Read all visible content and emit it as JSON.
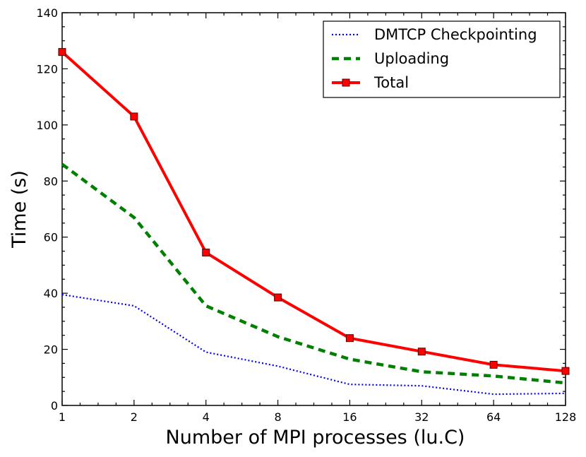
{
  "chart_data": {
    "type": "line",
    "xlabel": "Number of MPI processes (lu.C)",
    "ylabel": "Time (s)",
    "x": [
      1,
      2,
      4,
      8,
      16,
      32,
      64,
      128
    ],
    "x_tick_labels": [
      "1",
      "2",
      "4",
      "8",
      "16",
      "32",
      "64",
      "128"
    ],
    "x_scale": "log2",
    "xlim": [
      1,
      128
    ],
    "ylim": [
      0,
      140
    ],
    "y_ticks": [
      0,
      20,
      40,
      60,
      80,
      100,
      120,
      140
    ],
    "y_tick_labels": [
      "0",
      "20",
      "40",
      "60",
      "80",
      "100",
      "120",
      "140"
    ],
    "grid": false,
    "legend_position": "top-right",
    "series": [
      {
        "name": "DMTCP Checkpointing",
        "style": "dotted",
        "color": "#0000ff",
        "marker": "none",
        "values": [
          39.5,
          35.5,
          19,
          14,
          7.5,
          7,
          4,
          4.3
        ]
      },
      {
        "name": "Uploading",
        "style": "dashed",
        "color": "#008000",
        "marker": "none",
        "values": [
          86,
          67,
          35.5,
          24.5,
          16.5,
          12,
          10.5,
          8
        ]
      },
      {
        "name": "Total",
        "style": "solid",
        "color": "#ff0000",
        "marker": "square",
        "values": [
          126,
          103,
          54.5,
          38.5,
          24,
          19.2,
          14.5,
          12.3
        ]
      }
    ]
  }
}
